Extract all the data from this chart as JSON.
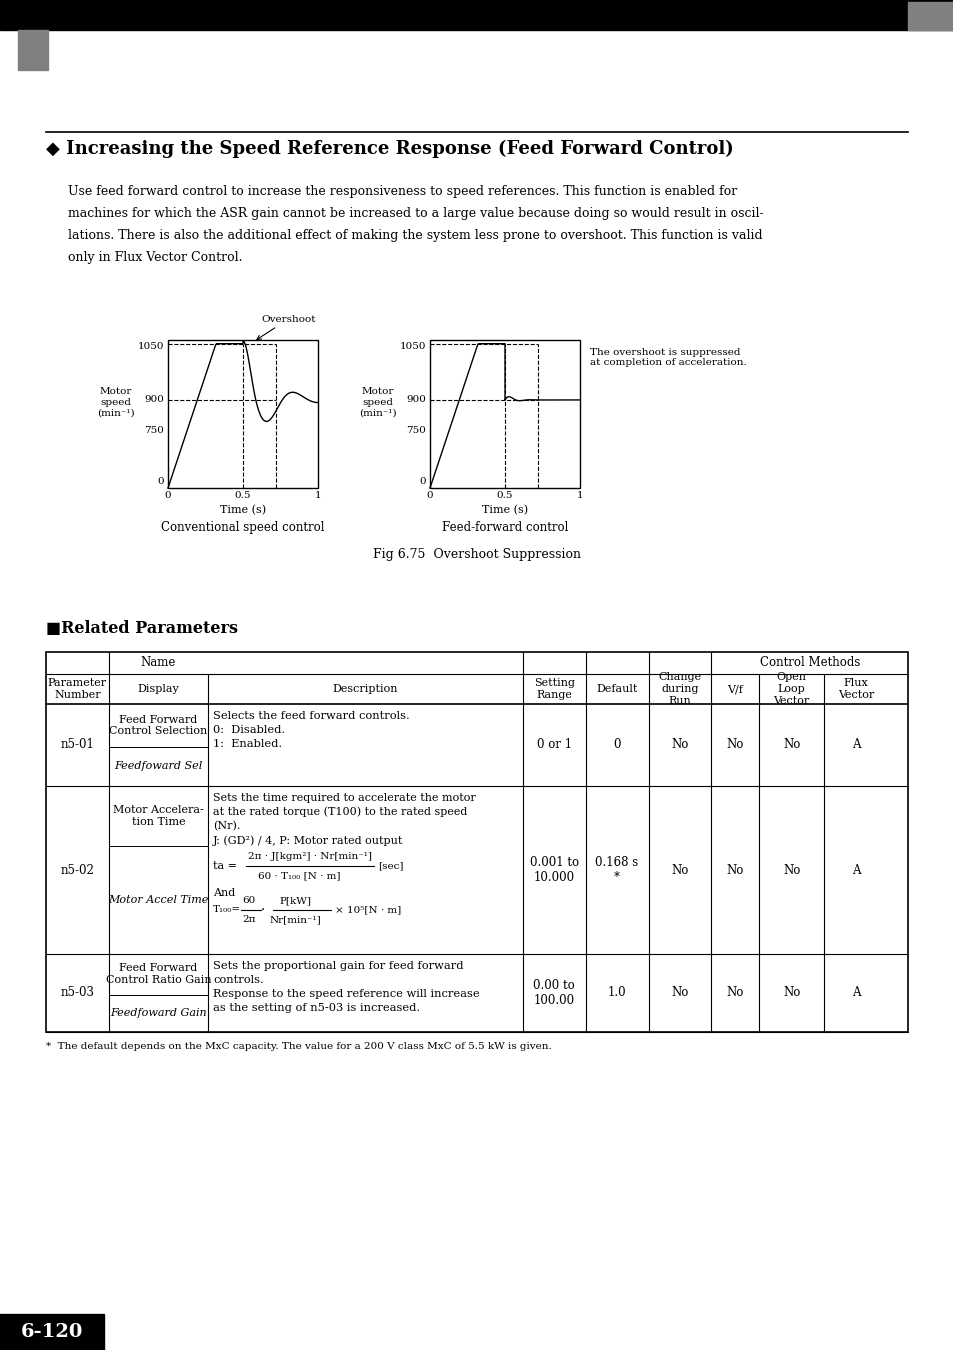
{
  "page_bg": "#ffffff",
  "top_bar_color": "#000000",
  "top_bar_height": 0.022,
  "gray_tab_color": "#808080",
  "section_title": "◆ Increasing the Speed Reference Response (Feed Forward Control)",
  "body_text_1": "Use feed forward control to increase the responsiveness to speed references. This function is enabled for",
  "body_text_2": "machines for which the ASR gain cannot be increased to a large value because doing so would result in oscil-",
  "body_text_3": "lations. There is also the additional effect of making the system less prone to overshoot. This function is valid",
  "body_text_4": "only in Flux Vector Control.",
  "fig_caption": "Fig 6.75  Overshoot Suppression",
  "chart_left_label": "Conventional speed control",
  "chart_right_label": "Feed-forward control",
  "related_params_title": "■Related Parameters",
  "footnote": "*  The default depends on the MxC capacity. The value for a 200 V class MxC of 5.5 kW is given.",
  "page_number": "6-120",
  "rows": [
    {
      "param": "n5-01",
      "name_top": "Feed Forward\nControl Selection",
      "name_bot": "Feedfoward Sel",
      "description": "Selects the feed forward controls.\n0:  Disabled.\n1:  Enabled.",
      "setting_range": "0 or 1",
      "default_val": "0",
      "change": "No",
      "vf": "No",
      "open_loop": "No",
      "flux": "A"
    },
    {
      "param": "n5-02",
      "name_top": "Motor Accelera-\ntion Time",
      "name_bot": "Motor Accel Time",
      "setting_range": "0.001 to\n10.000",
      "default_val": "0.168 s\n*",
      "change": "No",
      "vf": "No",
      "open_loop": "No",
      "flux": "A"
    },
    {
      "param": "n5-03",
      "name_top": "Feed Forward\nControl Ratio Gain",
      "name_bot": "Feedfoward Gain",
      "description": "Sets the proportional gain for feed forward\ncontrols.\nResponse to the speed reference will increase\nas the setting of n5-03 is increased.",
      "setting_range": "0.00 to\n100.00",
      "default_val": "1.0",
      "change": "No",
      "vf": "No",
      "open_loop": "No",
      "flux": "A"
    }
  ]
}
